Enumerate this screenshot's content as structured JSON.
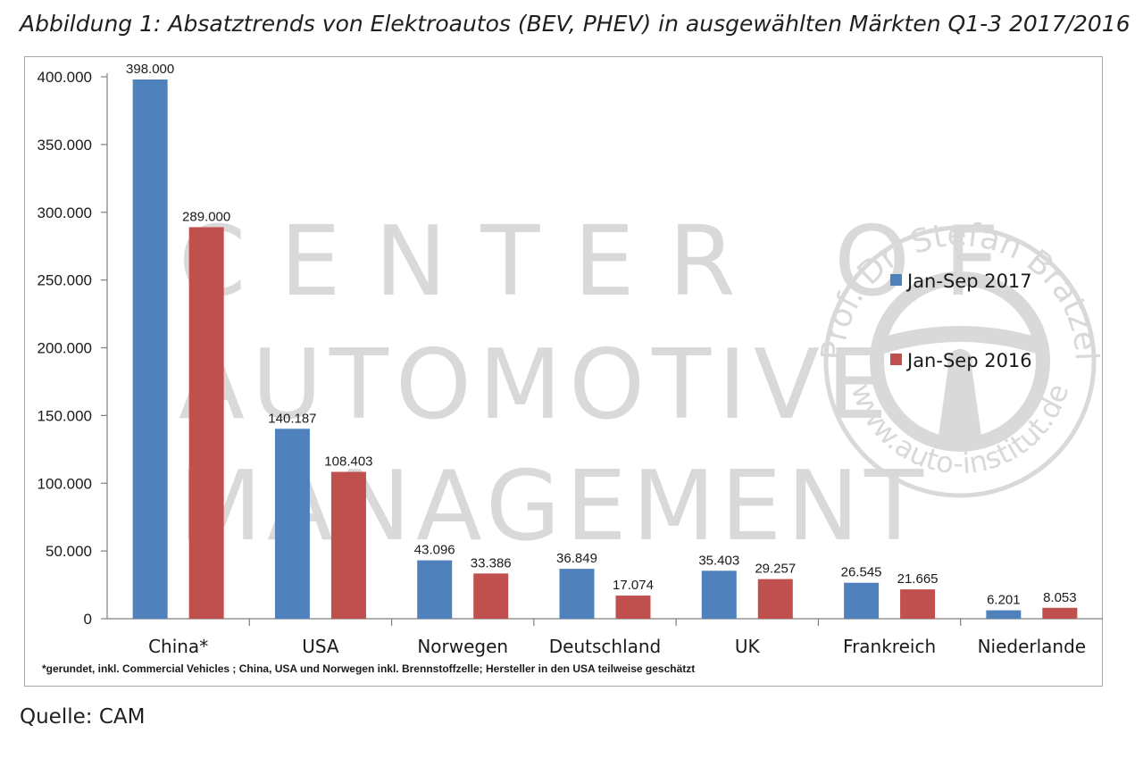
{
  "figure": {
    "title": "Abbildung 1: Absatztrends von Elektroautos (BEV, PHEV) in ausgewählten Märkten Q1-3 2017/2016",
    "source": "Quelle: CAM",
    "footnote": "*gerundet, inkl. Commercial Vehicles ; China, USA und Norwegen inkl. Brennstoffzelle; Hersteller in den USA teilweise geschätzt",
    "watermark": {
      "lines": [
        "CENTER OF",
        "AUTOMOTIVE",
        "MANAGEMENT"
      ],
      "seal_text": "Prof. Dr. Stefan Bratzel",
      "seal_url": "www.auto-institut.de"
    }
  },
  "colors": {
    "series_2017": "#4f81bd",
    "series_2016": "#c0504d",
    "watermark": "#d9d9d9",
    "axis": "#808080"
  },
  "chart_data": {
    "type": "bar",
    "title": "",
    "xlabel": "",
    "ylabel": "",
    "ylim": [
      0,
      400000
    ],
    "yticks": [
      0,
      50000,
      100000,
      150000,
      200000,
      250000,
      300000,
      350000,
      400000
    ],
    "ytick_labels": [
      "0",
      "50.000",
      "100.000",
      "150.000",
      "200.000",
      "250.000",
      "300.000",
      "350.000",
      "400.000"
    ],
    "grid": false,
    "legend_position": "right",
    "categories": [
      "China*",
      "USA",
      "Norwegen",
      "Deutschland",
      "UK",
      "Frankreich",
      "Niederlande"
    ],
    "series": [
      {
        "name": "Jan-Sep 2017",
        "values": [
          398000,
          140187,
          43096,
          36849,
          35403,
          26545,
          6201
        ],
        "labels": [
          "398.000",
          "140.187",
          "43.096",
          "36.849",
          "35.403",
          "26.545",
          "6.201"
        ]
      },
      {
        "name": "Jan-Sep 2016",
        "values": [
          289000,
          108403,
          33386,
          17074,
          29257,
          21665,
          8053
        ],
        "labels": [
          "289.000",
          "108.403",
          "33.386",
          "17.074",
          "29.257",
          "21.665",
          "8.053"
        ]
      }
    ]
  }
}
